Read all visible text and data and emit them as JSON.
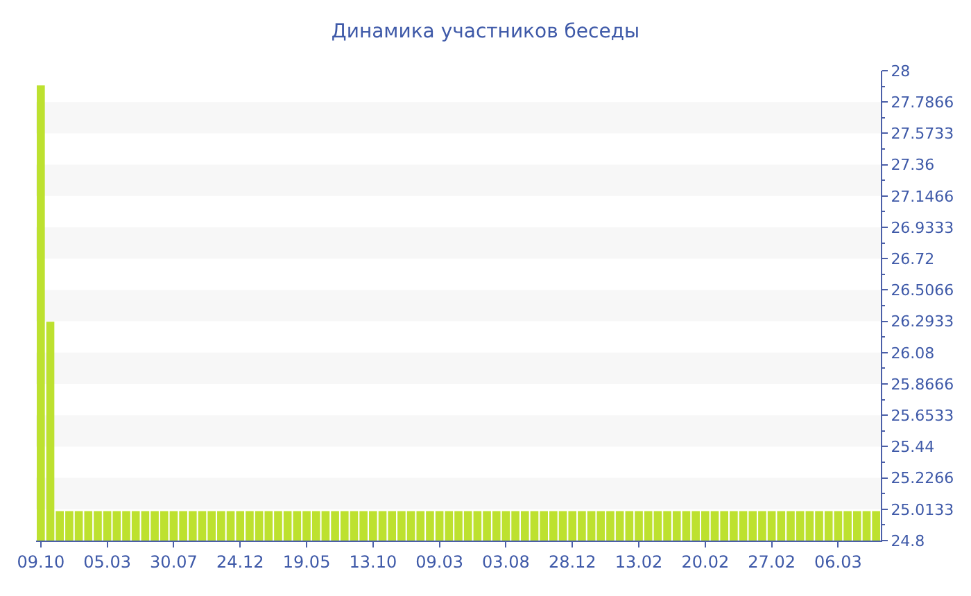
{
  "chart_data": {
    "type": "bar",
    "title": "Динамика участников беседы",
    "categories": [
      "09.10",
      null,
      null,
      null,
      null,
      null,
      null,
      "05.03",
      null,
      null,
      null,
      null,
      null,
      null,
      "30.07",
      null,
      null,
      null,
      null,
      null,
      null,
      "24.12",
      null,
      null,
      null,
      null,
      null,
      null,
      "19.05",
      null,
      null,
      null,
      null,
      null,
      null,
      "13.10",
      null,
      null,
      null,
      null,
      null,
      null,
      "09.03",
      null,
      null,
      null,
      null,
      null,
      null,
      "03.08",
      null,
      null,
      null,
      null,
      null,
      null,
      "28.12",
      null,
      null,
      null,
      null,
      null,
      null,
      "13.02",
      null,
      null,
      null,
      null,
      null,
      null,
      "20.02",
      null,
      null,
      null,
      null,
      null,
      null,
      "27.02",
      null,
      null,
      null,
      null,
      null,
      null,
      "06.03",
      null,
      null,
      null,
      null
    ],
    "values": [
      27.9,
      26.29,
      25,
      25,
      25,
      25,
      25,
      25,
      25,
      25,
      25,
      25,
      25,
      25,
      25,
      25,
      25,
      25,
      25,
      25,
      25,
      25,
      25,
      25,
      25,
      25,
      25,
      25,
      25,
      25,
      25,
      25,
      25,
      25,
      25,
      25,
      25,
      25,
      25,
      25,
      25,
      25,
      25,
      25,
      25,
      25,
      25,
      25,
      25,
      25,
      25,
      25,
      25,
      25,
      25,
      25,
      25,
      25,
      25,
      25,
      25,
      25,
      25,
      25,
      25,
      25,
      25,
      25,
      25,
      25,
      25,
      25,
      25,
      25,
      25,
      25,
      25,
      25,
      25,
      25,
      25,
      25,
      25,
      25,
      25,
      25,
      25,
      25,
      25
    ],
    "color": "#bde12f",
    "ylim": [
      24.8,
      28
    ],
    "yticks": [
      28,
      {
        "value": 27.8933,
        "label": null
      },
      27.7866,
      {
        "value": 27.68,
        "label": null
      },
      27.5733,
      {
        "value": 27.4667,
        "label": null
      },
      27.36,
      {
        "value": 27.2533,
        "label": null
      },
      27.1466,
      {
        "value": 27.04,
        "label": null
      },
      26.9333,
      {
        "value": 26.8267,
        "label": null
      },
      26.72,
      {
        "value": 26.6133,
        "label": null
      },
      26.5066,
      {
        "value": 26.4,
        "label": null
      },
      26.2933,
      {
        "value": 26.1867,
        "label": null
      },
      26.08,
      {
        "value": 25.9733,
        "label": null
      },
      25.8666,
      {
        "value": 25.76,
        "label": null
      },
      25.6533,
      {
        "value": 25.5467,
        "label": null
      },
      25.44,
      {
        "value": 25.3333,
        "label": null
      },
      25.2266,
      {
        "value": 25.12,
        "label": null
      },
      25.0133,
      {
        "value": 24.9067,
        "label": null
      },
      24.8
    ],
    "bands": [
      {
        "axis": "y",
        "from": 27.7866,
        "to": 27.5733,
        "color": "#f7f7f7"
      },
      {
        "axis": "y",
        "from": 27.36,
        "to": 27.1466,
        "color": "#f7f7f7"
      },
      {
        "axis": "y",
        "from": 26.9333,
        "to": 26.72,
        "color": "#f7f7f7"
      },
      {
        "axis": "y",
        "from": 26.5066,
        "to": 26.2933,
        "color": "#f7f7f7"
      },
      {
        "axis": "y",
        "from": 26.08,
        "to": 25.8666,
        "color": "#f7f7f7"
      },
      {
        "axis": "y",
        "from": 25.6533,
        "to": 25.44,
        "color": "#f7f7f7"
      },
      {
        "axis": "y",
        "from": 25.2266,
        "to": 25.0133,
        "color": "#f7f7f7"
      }
    ]
  }
}
